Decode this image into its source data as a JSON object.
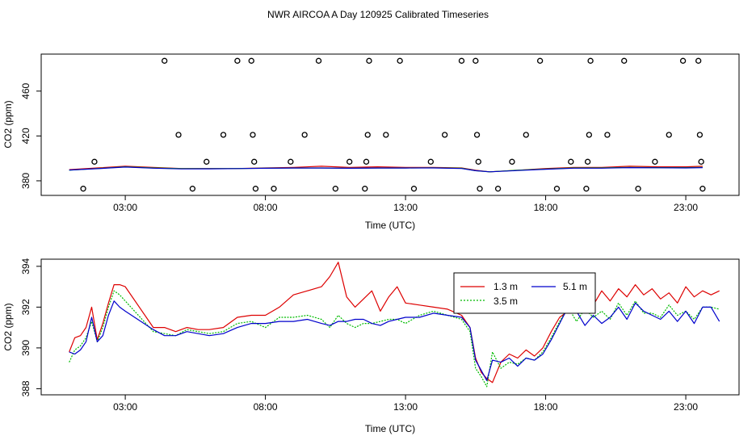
{
  "chart_data": {
    "title": "NWR AIRCOA A  Day 120925  Calibrated Timeseries",
    "panels": [
      {
        "type": "scatter+line",
        "xlabel": "Time (UTC)",
        "ylabel": "CO2 (ppm)",
        "xlim": [
          0,
          24.9
        ],
        "ylim": [
          367,
          493
        ],
        "xticks": [
          {
            "value": 3,
            "label": "03:00"
          },
          {
            "value": 8,
            "label": "08:00"
          },
          {
            "value": 13,
            "label": "13:00"
          },
          {
            "value": 18,
            "label": "18:00"
          },
          {
            "value": 23,
            "label": "23:00"
          }
        ],
        "yticks": [
          {
            "value": 380,
            "label": "380"
          },
          {
            "value": 420,
            "label": "420"
          },
          {
            "value": 460,
            "label": "460"
          }
        ],
        "calibration_points": [
          {
            "x": 1.5,
            "y": 373
          },
          {
            "x": 1.9,
            "y": 397
          },
          {
            "x": 4.4,
            "y": 487
          },
          {
            "x": 4.9,
            "y": 421
          },
          {
            "x": 5.4,
            "y": 373
          },
          {
            "x": 5.9,
            "y": 397
          },
          {
            "x": 6.5,
            "y": 421
          },
          {
            "x": 7.0,
            "y": 487
          },
          {
            "x": 7.5,
            "y": 487
          },
          {
            "x": 7.55,
            "y": 421
          },
          {
            "x": 7.6,
            "y": 397
          },
          {
            "x": 7.65,
            "y": 373
          },
          {
            "x": 8.3,
            "y": 373
          },
          {
            "x": 8.9,
            "y": 397
          },
          {
            "x": 9.4,
            "y": 421
          },
          {
            "x": 9.9,
            "y": 487
          },
          {
            "x": 10.5,
            "y": 373
          },
          {
            "x": 11.0,
            "y": 397
          },
          {
            "x": 11.55,
            "y": 373
          },
          {
            "x": 11.6,
            "y": 397
          },
          {
            "x": 11.65,
            "y": 421
          },
          {
            "x": 11.7,
            "y": 487
          },
          {
            "x": 12.3,
            "y": 421
          },
          {
            "x": 12.8,
            "y": 487
          },
          {
            "x": 13.3,
            "y": 373
          },
          {
            "x": 13.9,
            "y": 397
          },
          {
            "x": 14.4,
            "y": 421
          },
          {
            "x": 15.0,
            "y": 487
          },
          {
            "x": 15.5,
            "y": 487
          },
          {
            "x": 15.55,
            "y": 421
          },
          {
            "x": 15.6,
            "y": 397
          },
          {
            "x": 15.65,
            "y": 373
          },
          {
            "x": 16.3,
            "y": 373
          },
          {
            "x": 16.8,
            "y": 397
          },
          {
            "x": 17.3,
            "y": 421
          },
          {
            "x": 17.8,
            "y": 487
          },
          {
            "x": 18.4,
            "y": 373
          },
          {
            "x": 18.9,
            "y": 397
          },
          {
            "x": 19.45,
            "y": 373
          },
          {
            "x": 19.5,
            "y": 397
          },
          {
            "x": 19.55,
            "y": 421
          },
          {
            "x": 19.6,
            "y": 487
          },
          {
            "x": 20.2,
            "y": 421
          },
          {
            "x": 20.8,
            "y": 487
          },
          {
            "x": 21.3,
            "y": 373
          },
          {
            "x": 21.9,
            "y": 397
          },
          {
            "x": 22.4,
            "y": 421
          },
          {
            "x": 22.9,
            "y": 487
          },
          {
            "x": 23.45,
            "y": 487
          },
          {
            "x": 23.5,
            "y": 421
          },
          {
            "x": 23.55,
            "y": 397
          },
          {
            "x": 23.6,
            "y": 373
          }
        ],
        "series": [
          {
            "name": "1.3 m",
            "color": "#dd0000",
            "x": [
              1,
              2,
              3,
              4,
              5,
              6,
              7,
              8,
              9,
              10,
              11,
              12,
              13,
              14,
              15,
              15.5,
              16,
              17,
              18,
              19,
              20,
              21,
              22,
              23,
              23.6
            ],
            "y": [
              390,
              391.5,
              393,
              392,
              391,
              391,
              391,
              391.5,
              392,
              393,
              392,
              392.5,
              392,
              392,
              391.5,
              389.5,
              388,
              389.5,
              391,
              392,
              392,
              393,
              392.5,
              392.5,
              393
            ]
          },
          {
            "name": "3.5 m",
            "color": "#00bb00",
            "x": [
              1,
              2,
              3,
              4,
              5,
              6,
              7,
              8,
              9,
              10,
              11,
              12,
              13,
              14,
              15,
              15.5,
              16,
              17,
              18,
              19,
              20,
              21,
              22,
              23,
              23.6
            ],
            "y": [
              389.5,
              391,
              392.5,
              391.5,
              390.8,
              390.8,
              391,
              391.3,
              391.5,
              391.5,
              391.3,
              391.5,
              391.5,
              391.6,
              391.2,
              389,
              388,
              389.5,
              390.5,
              391.5,
              391.5,
              392,
              391.8,
              391.8,
              392
            ]
          },
          {
            "name": "5.1 m",
            "color": "#0000cc",
            "x": [
              1,
              2,
              3,
              4,
              5,
              6,
              7,
              8,
              9,
              10,
              11,
              12,
              13,
              14,
              15,
              15.5,
              16,
              17,
              18,
              19,
              20,
              21,
              22,
              23,
              23.6
            ],
            "y": [
              389.6,
              390.8,
              392.3,
              391.3,
              390.6,
              390.7,
              390.9,
              391.2,
              391.4,
              391.4,
              391.2,
              391.4,
              391.4,
              391.5,
              391,
              389,
              388,
              389.2,
              390.3,
              391.3,
              391.3,
              391.8,
              391.6,
              391.5,
              391.8
            ]
          }
        ]
      },
      {
        "type": "line",
        "xlabel": "Time (UTC)",
        "ylabel": "CO2 (ppm)",
        "xlim": [
          0,
          24.9
        ],
        "ylim": [
          387.7,
          394.35
        ],
        "xticks": [
          {
            "value": 3,
            "label": "03:00"
          },
          {
            "value": 8,
            "label": "08:00"
          },
          {
            "value": 13,
            "label": "13:00"
          },
          {
            "value": 18,
            "label": "18:00"
          },
          {
            "value": 23,
            "label": "23:00"
          }
        ],
        "yticks": [
          {
            "value": 388,
            "label": "388"
          },
          {
            "value": 390,
            "label": "390"
          },
          {
            "value": 392,
            "label": "392"
          },
          {
            "value": 394,
            "label": "394"
          }
        ],
        "legend": {
          "position": "top-center-right",
          "entries": [
            "1.3 m",
            "3.5 m",
            "5.1 m"
          ]
        },
        "series": [
          {
            "name": "1.3 m",
            "color": "#dd0000",
            "dash": "solid",
            "x": [
              1.0,
              1.2,
              1.4,
              1.6,
              1.8,
              2.0,
              2.2,
              2.4,
              2.6,
              2.8,
              3.0,
              4.0,
              4.4,
              4.8,
              5.2,
              5.6,
              6.0,
              6.5,
              7.0,
              7.5,
              8.0,
              8.5,
              9.0,
              9.5,
              10.0,
              10.3,
              10.6,
              10.9,
              11.2,
              11.5,
              11.8,
              12.1,
              12.4,
              12.7,
              13.0,
              13.5,
              14.0,
              14.5,
              15.0,
              15.3,
              15.5,
              15.7,
              15.9,
              16.1,
              16.4,
              16.7,
              17.0,
              17.3,
              17.6,
              17.9,
              18.2,
              18.5,
              18.8,
              19.1,
              19.4,
              19.7,
              20.0,
              20.3,
              20.6,
              20.9,
              21.2,
              21.5,
              21.8,
              22.1,
              22.4,
              22.7,
              23.0,
              23.3,
              23.6,
              23.9,
              24.2
            ],
            "y": [
              389.8,
              390.5,
              390.6,
              391.0,
              392.0,
              390.4,
              391.2,
              392.2,
              393.1,
              393.1,
              393.0,
              391.0,
              391.0,
              390.8,
              391.0,
              390.9,
              390.9,
              391.0,
              391.5,
              391.6,
              391.6,
              392.0,
              392.6,
              392.8,
              393.0,
              393.5,
              394.2,
              392.5,
              392.0,
              392.4,
              392.8,
              391.8,
              392.5,
              393.0,
              392.2,
              392.1,
              392.0,
              391.9,
              391.6,
              391.0,
              389.5,
              388.8,
              388.5,
              388.3,
              389.3,
              389.7,
              389.5,
              389.9,
              389.6,
              390.0,
              390.8,
              391.5,
              391.8,
              391.7,
              392.5,
              392.1,
              392.8,
              392.3,
              392.9,
              392.5,
              393.1,
              392.6,
              392.9,
              392.4,
              392.7,
              392.2,
              393.0,
              392.5,
              392.8,
              392.6,
              392.8
            ]
          },
          {
            "name": "3.5 m",
            "color": "#00bb00",
            "dash": "dotted",
            "x": [
              1.0,
              1.2,
              1.4,
              1.6,
              1.8,
              2.0,
              2.2,
              2.4,
              2.6,
              2.8,
              3.0,
              4.0,
              4.4,
              4.8,
              5.2,
              5.6,
              6.0,
              6.5,
              7.0,
              7.5,
              8.0,
              8.5,
              9.0,
              9.5,
              10.0,
              10.3,
              10.6,
              10.9,
              11.2,
              11.5,
              11.8,
              12.1,
              12.4,
              12.7,
              13.0,
              13.5,
              14.0,
              14.5,
              15.0,
              15.3,
              15.5,
              15.7,
              15.9,
              16.1,
              16.4,
              16.7,
              17.0,
              17.3,
              17.6,
              17.9,
              18.2,
              18.5,
              18.8,
              19.1,
              19.4,
              19.7,
              20.0,
              20.3,
              20.6,
              20.9,
              21.2,
              21.5,
              21.8,
              22.1,
              22.4,
              22.7,
              23.0,
              23.3,
              23.6,
              23.9,
              24.2
            ],
            "y": [
              389.3,
              389.9,
              390.1,
              390.5,
              391.3,
              390.3,
              391.0,
              392.0,
              392.8,
              392.6,
              392.3,
              390.8,
              390.7,
              390.6,
              390.9,
              390.8,
              390.7,
              390.8,
              391.2,
              391.3,
              391.0,
              391.5,
              391.5,
              391.6,
              391.4,
              391.0,
              391.6,
              391.2,
              391.0,
              391.2,
              391.2,
              391.3,
              391.4,
              391.4,
              391.2,
              391.6,
              391.8,
              391.6,
              391.4,
              390.8,
              389.0,
              388.6,
              388.1,
              389.8,
              389.0,
              389.3,
              389.2,
              389.5,
              389.4,
              389.8,
              390.5,
              391.3,
              392.0,
              391.3,
              391.9,
              391.5,
              391.8,
              391.4,
              392.2,
              391.6,
              392.3,
              391.7,
              391.7,
              391.5,
              392.1,
              391.6,
              391.8,
              391.4,
              392.0,
              392.0,
              391.9
            ]
          },
          {
            "name": "5.1 m",
            "color": "#0000cc",
            "dash": "solid",
            "x": [
              1.0,
              1.2,
              1.4,
              1.6,
              1.8,
              2.0,
              2.2,
              2.4,
              2.6,
              2.8,
              3.0,
              4.0,
              4.4,
              4.8,
              5.2,
              5.6,
              6.0,
              6.5,
              7.0,
              7.5,
              8.0,
              8.5,
              9.0,
              9.5,
              10.0,
              10.3,
              10.6,
              10.9,
              11.2,
              11.5,
              11.8,
              12.1,
              12.4,
              12.7,
              13.0,
              13.5,
              14.0,
              14.5,
              15.0,
              15.3,
              15.5,
              15.7,
              15.9,
              16.1,
              16.4,
              16.7,
              17.0,
              17.3,
              17.6,
              17.9,
              18.2,
              18.5,
              18.8,
              19.1,
              19.4,
              19.7,
              20.0,
              20.3,
              20.6,
              20.9,
              21.2,
              21.5,
              21.8,
              22.1,
              22.4,
              22.7,
              23.0,
              23.3,
              23.6,
              23.9,
              24.2
            ],
            "y": [
              389.8,
              389.7,
              389.9,
              390.3,
              391.5,
              390.3,
              390.6,
              391.6,
              392.3,
              392.0,
              391.8,
              390.9,
              390.6,
              390.6,
              390.8,
              390.7,
              390.6,
              390.7,
              391.0,
              391.2,
              391.2,
              391.3,
              391.3,
              391.4,
              391.2,
              391.1,
              391.3,
              391.3,
              391.4,
              391.4,
              391.2,
              391.1,
              391.3,
              391.4,
              391.5,
              391.5,
              391.7,
              391.6,
              391.5,
              391.0,
              389.4,
              388.9,
              388.4,
              389.4,
              389.3,
              389.5,
              389.1,
              389.5,
              389.4,
              389.7,
              390.4,
              391.2,
              392.0,
              391.8,
              391.1,
              391.6,
              391.2,
              391.5,
              392.0,
              391.4,
              392.2,
              391.8,
              391.6,
              391.4,
              391.8,
              391.3,
              391.8,
              391.2,
              392.0,
              392.0,
              391.3
            ]
          }
        ]
      }
    ]
  }
}
